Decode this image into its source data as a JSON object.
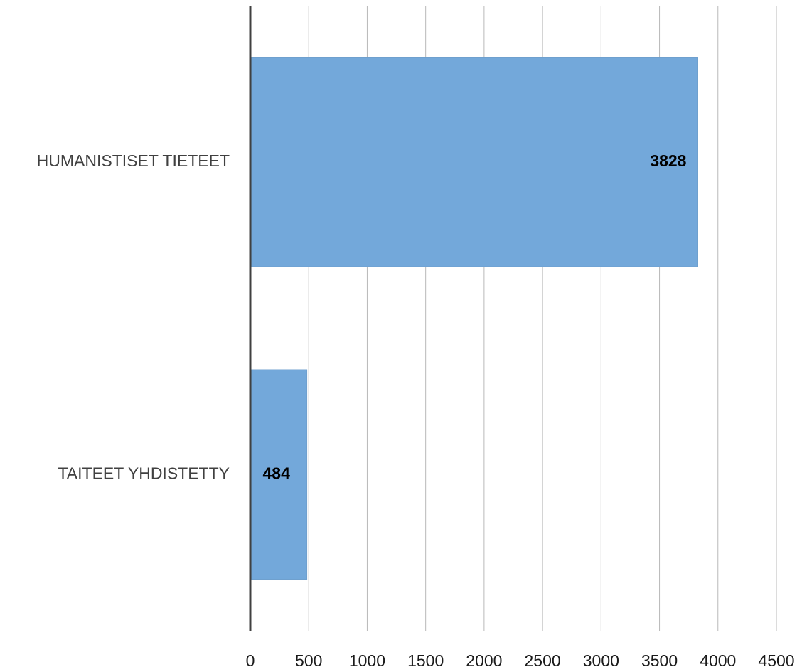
{
  "chart_data": {
    "type": "bar",
    "orientation": "horizontal",
    "categories": [
      "HUMANISTISET TIETEET",
      "TAITEET YHDISTETTY"
    ],
    "values": [
      3828,
      484
    ],
    "data_labels": [
      "3828",
      "484"
    ],
    "xlim": [
      0,
      4500
    ],
    "x_ticks": [
      0,
      500,
      1000,
      1500,
      2000,
      2500,
      3000,
      3500,
      4000,
      4500
    ],
    "x_tick_labels": [
      "0",
      "500",
      "1000",
      "1500",
      "2000",
      "2500",
      "3000",
      "3500",
      "4000",
      "4500"
    ],
    "grid": "vertical",
    "legend": "none",
    "colors": {
      "bar": "#73a8da",
      "bar_edge": "#6d9fce",
      "grid": "#b8b8b8",
      "axis": "#404040"
    }
  }
}
